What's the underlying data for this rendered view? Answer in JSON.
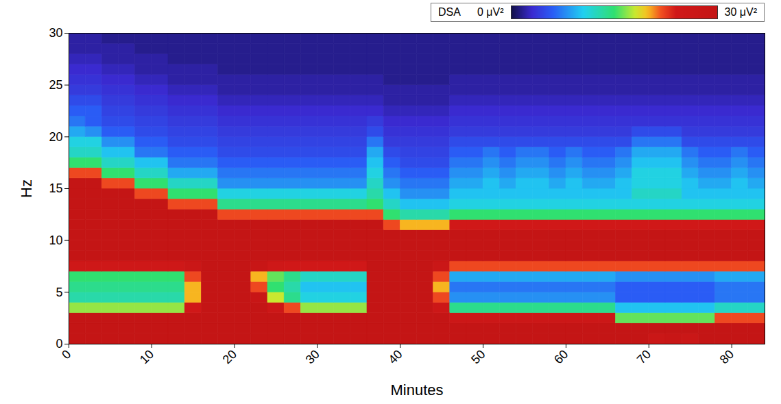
{
  "chart_data": {
    "type": "heatmap",
    "x_label": "Minutes",
    "y_label": "Hz",
    "xlim": [
      0,
      84
    ],
    "ylim": [
      0,
      30
    ],
    "xticks": [
      0,
      10,
      20,
      30,
      40,
      50,
      60,
      70,
      80
    ],
    "yticks": [
      0,
      5,
      10,
      15,
      20,
      25,
      30
    ],
    "legend": "top right",
    "colorbar": {
      "title": "DSA",
      "range": [
        0,
        30
      ],
      "ticks": [
        {
          "value": 0,
          "label": "0 μV²"
        },
        {
          "value": 30,
          "label": "30 μV²"
        }
      ]
    },
    "x_bins": [
      0,
      2,
      4,
      6,
      8,
      10,
      12,
      14,
      16,
      18,
      20,
      22,
      24,
      26,
      28,
      30,
      32,
      34,
      36,
      38,
      40,
      42,
      44,
      46,
      48,
      50,
      52,
      54,
      56,
      58,
      60,
      62,
      64,
      66,
      68,
      70,
      72,
      74,
      76,
      78,
      80,
      82,
      84
    ],
    "y_bins": [
      0,
      1,
      2,
      3,
      4,
      5,
      6,
      7,
      8,
      9,
      10,
      11,
      12,
      13,
      14,
      15,
      16,
      17,
      18,
      19,
      20,
      21,
      22,
      23,
      24,
      25,
      26,
      27,
      28,
      29,
      30
    ],
    "z": [
      [
        30,
        30,
        30,
        30,
        30,
        30,
        30,
        30,
        30,
        30,
        30,
        30,
        30,
        30,
        30,
        30,
        30,
        30,
        30,
        30,
        30,
        30,
        30,
        30,
        30,
        30,
        30,
        30,
        30,
        30,
        30,
        30,
        30,
        30,
        30,
        27,
        28,
        27,
        30,
        30,
        30,
        30
      ],
      [
        30,
        30,
        30,
        30,
        30,
        30,
        30,
        30,
        30,
        30,
        30,
        30,
        30,
        30,
        30,
        30,
        30,
        30,
        30,
        30,
        30,
        30,
        30,
        30,
        30,
        30,
        30,
        30,
        30,
        30,
        30,
        30,
        30,
        30,
        30,
        30,
        30,
        30,
        30,
        30,
        30,
        30
      ],
      [
        30,
        30,
        30,
        30,
        30,
        30,
        30,
        30,
        30,
        30,
        30,
        30,
        30,
        30,
        30,
        30,
        30,
        30,
        30,
        30,
        30,
        30,
        30,
        26,
        26,
        26,
        26,
        26,
        26,
        26,
        26,
        26,
        26,
        16,
        16,
        16,
        16,
        16,
        16,
        22,
        22,
        22
      ],
      [
        17,
        17,
        17,
        17,
        17,
        17,
        17,
        24,
        30,
        30,
        30,
        30,
        26,
        22,
        17,
        17,
        17,
        17,
        30,
        30,
        30,
        30,
        26,
        14,
        14,
        14,
        14,
        14,
        14,
        14,
        14,
        14,
        14,
        10,
        10,
        10,
        10,
        10,
        10,
        12,
        12,
        12
      ],
      [
        13,
        13,
        13,
        13,
        13,
        13,
        13,
        20,
        30,
        30,
        30,
        28,
        18,
        14,
        11,
        11,
        11,
        11,
        30,
        30,
        30,
        30,
        22,
        8,
        8,
        8,
        8,
        8,
        8,
        8,
        8,
        8,
        8,
        6,
        6,
        6,
        6,
        6,
        6,
        7,
        7,
        7
      ],
      [
        14,
        14,
        14,
        14,
        14,
        14,
        14,
        20,
        30,
        30,
        30,
        22,
        15,
        13,
        10,
        10,
        10,
        10,
        30,
        30,
        30,
        30,
        20,
        7,
        7,
        7,
        7,
        7,
        7,
        7,
        7,
        7,
        7,
        6,
        6,
        6,
        6,
        6,
        6,
        7,
        7,
        7
      ],
      [
        15,
        15,
        15,
        15,
        15,
        15,
        15,
        22,
        30,
        30,
        30,
        20,
        16,
        14,
        12,
        12,
        12,
        12,
        30,
        30,
        30,
        30,
        22,
        9,
        9,
        9,
        9,
        9,
        9,
        9,
        9,
        9,
        9,
        8,
        8,
        8,
        8,
        8,
        8,
        9,
        9,
        9
      ],
      [
        25,
        25,
        25,
        25,
        25,
        25,
        25,
        27,
        30,
        30,
        30,
        28,
        25,
        24,
        24,
        24,
        24,
        24,
        30,
        30,
        30,
        30,
        27,
        22,
        22,
        22,
        22,
        22,
        22,
        22,
        22,
        22,
        22,
        22,
        22,
        22,
        22,
        22,
        22,
        22,
        22,
        22
      ],
      [
        30,
        30,
        30,
        30,
        30,
        30,
        30,
        30,
        30,
        30,
        30,
        30,
        30,
        30,
        30,
        30,
        30,
        30,
        30,
        30,
        30,
        30,
        30,
        30,
        30,
        30,
        30,
        30,
        30,
        30,
        30,
        30,
        30,
        30,
        30,
        30,
        30,
        30,
        30,
        30,
        30,
        30
      ],
      [
        30,
        30,
        30,
        30,
        30,
        30,
        30,
        30,
        30,
        30,
        30,
        30,
        30,
        30,
        30,
        30,
        30,
        30,
        30,
        30,
        30,
        30,
        30,
        30,
        30,
        30,
        30,
        30,
        30,
        30,
        30,
        30,
        30,
        30,
        30,
        30,
        30,
        30,
        30,
        30,
        30,
        30
      ],
      [
        30,
        30,
        30,
        30,
        30,
        30,
        30,
        30,
        30,
        30,
        30,
        30,
        30,
        30,
        30,
        30,
        30,
        30,
        30,
        30,
        30,
        30,
        30,
        30,
        30,
        30,
        30,
        30,
        30,
        30,
        30,
        30,
        30,
        30,
        30,
        30,
        30,
        30,
        30,
        30,
        30,
        30
      ],
      [
        30,
        30,
        30,
        30,
        30,
        30,
        30,
        30,
        30,
        30,
        30,
        30,
        30,
        30,
        30,
        30,
        30,
        30,
        30,
        22,
        20,
        20,
        20,
        24,
        24,
        24,
        24,
        24,
        24,
        24,
        24,
        24,
        24,
        24,
        24,
        24,
        24,
        24,
        24,
        24,
        24,
        24
      ],
      [
        30,
        30,
        30,
        30,
        30,
        30,
        30,
        30,
        30,
        22,
        22,
        22,
        22,
        22,
        22,
        22,
        22,
        22,
        22,
        15,
        13,
        13,
        13,
        15,
        15,
        15,
        15,
        15,
        15,
        15,
        15,
        15,
        15,
        15,
        15,
        15,
        15,
        15,
        15,
        15,
        15,
        15
      ],
      [
        30,
        30,
        30,
        30,
        30,
        30,
        22,
        22,
        22,
        14,
        14,
        14,
        14,
        14,
        14,
        14,
        14,
        14,
        15,
        12,
        10,
        10,
        10,
        11,
        11,
        11,
        11,
        11,
        11,
        11,
        11,
        11,
        11,
        11,
        11,
        11,
        11,
        11,
        11,
        11,
        11,
        11
      ],
      [
        30,
        30,
        30,
        30,
        22,
        22,
        15,
        15,
        15,
        11,
        11,
        11,
        11,
        11,
        11,
        11,
        11,
        11,
        13,
        10,
        8,
        8,
        8,
        10,
        10,
        10,
        10,
        10,
        10,
        10,
        10,
        10,
        10,
        10,
        12,
        12,
        12,
        10,
        10,
        10,
        10,
        10
      ],
      [
        30,
        30,
        22,
        22,
        15,
        15,
        12,
        12,
        12,
        8,
        8,
        8,
        8,
        8,
        8,
        8,
        8,
        8,
        12,
        8,
        7,
        7,
        7,
        9,
        9,
        10,
        9,
        10,
        10,
        9,
        10,
        9,
        9,
        10,
        11,
        11,
        11,
        10,
        9,
        9,
        10,
        9
      ],
      [
        22,
        22,
        15,
        15,
        12,
        12,
        9,
        9,
        9,
        7,
        7,
        7,
        7,
        7,
        7,
        7,
        7,
        7,
        11,
        7,
        6,
        6,
        6,
        8,
        8,
        9,
        8,
        9,
        9,
        8,
        9,
        8,
        8,
        9,
        11,
        11,
        11,
        9,
        8,
        8,
        9,
        8
      ],
      [
        15,
        15,
        12,
        12,
        10,
        10,
        7,
        7,
        7,
        6,
        6,
        6,
        6,
        6,
        6,
        6,
        6,
        6,
        10,
        6,
        5,
        5,
        5,
        7,
        7,
        8,
        7,
        8,
        8,
        7,
        8,
        7,
        7,
        8,
        10,
        10,
        10,
        8,
        7,
        7,
        8,
        7
      ],
      [
        12,
        12,
        10,
        10,
        7,
        7,
        6,
        6,
        6,
        5,
        5,
        5,
        5,
        5,
        5,
        5,
        5,
        5,
        9,
        5,
        4.5,
        4.5,
        4.5,
        6,
        6,
        7,
        6,
        7,
        7,
        6,
        7,
        6,
        6,
        7,
        9,
        9,
        9,
        7,
        6,
        6,
        7,
        6
      ],
      [
        11,
        11,
        8,
        8,
        6,
        6,
        5,
        5,
        5,
        4.5,
        4.5,
        4.5,
        4.5,
        4.5,
        4.5,
        4.5,
        4.5,
        4.5,
        7,
        4,
        4,
        4,
        4,
        5,
        5,
        5,
        5,
        5,
        5,
        5,
        5,
        5,
        5,
        5,
        7,
        7,
        7,
        5,
        5,
        5,
        5,
        5
      ],
      [
        9,
        8,
        6,
        6,
        5,
        5,
        4.5,
        4.5,
        4.5,
        4,
        4,
        4,
        4,
        4,
        4,
        4,
        4,
        4,
        5,
        3.5,
        3.5,
        3.5,
        3.5,
        4,
        4,
        4,
        4,
        4,
        4,
        4,
        4,
        4,
        4,
        4,
        5,
        5,
        5,
        4,
        4,
        4,
        4,
        4
      ],
      [
        7,
        6,
        5,
        5,
        4.5,
        4.5,
        4,
        4,
        4,
        3.5,
        3.5,
        3.5,
        3.5,
        3.5,
        3.5,
        3.5,
        3.5,
        3.5,
        4,
        3,
        3,
        3,
        3,
        3.5,
        3.5,
        3.5,
        3.5,
        3.5,
        3.5,
        3.5,
        3.5,
        3.5,
        3.5,
        3.5,
        3.5,
        3.5,
        3.5,
        3.5,
        3.5,
        3.5,
        3.5,
        3.5
      ],
      [
        6,
        6,
        4.5,
        4.5,
        4,
        4,
        3.5,
        3.5,
        3.5,
        3,
        3,
        3,
        3,
        3,
        3,
        3,
        3,
        3,
        3,
        2.5,
        2.5,
        2.5,
        2.5,
        3,
        3,
        3,
        3,
        3,
        3,
        3,
        3,
        3,
        3,
        3,
        3,
        3,
        3,
        3,
        3,
        3,
        3,
        3
      ],
      [
        5,
        5,
        4,
        4,
        3.5,
        3.5,
        3,
        3,
        3,
        2.5,
        2.5,
        2.5,
        2.5,
        2.5,
        2.5,
        2.5,
        2.5,
        2.5,
        2.5,
        2,
        2,
        2,
        2,
        2.5,
        2.5,
        2.5,
        2.5,
        2.5,
        2.5,
        2.5,
        2.5,
        2.5,
        2.5,
        2.5,
        2.5,
        2.5,
        2.5,
        2.5,
        2.5,
        2.5,
        2.5,
        2.5
      ],
      [
        4,
        4,
        3.5,
        3.5,
        3,
        3,
        2.5,
        2.5,
        2.5,
        2,
        2,
        2,
        2,
        2,
        2,
        2,
        2,
        2,
        2,
        2,
        2,
        2,
        2,
        2,
        2,
        2,
        2,
        2,
        2,
        2,
        2,
        2,
        2,
        2,
        2,
        2,
        2,
        2,
        2,
        2,
        2,
        2
      ],
      [
        3.5,
        3.5,
        3,
        3,
        2.5,
        2.5,
        2,
        2,
        2,
        2,
        2,
        2,
        2,
        2,
        2,
        2,
        2,
        2,
        2,
        1.5,
        1.5,
        1.5,
        1.5,
        2,
        2,
        2,
        2,
        2,
        2,
        2,
        2,
        2,
        2,
        2,
        2,
        2,
        2,
        2,
        2,
        2,
        2,
        2
      ],
      [
        3,
        3,
        2.5,
        2.5,
        2,
        2,
        2,
        2,
        2,
        1.5,
        1.5,
        1.5,
        1.5,
        1.5,
        1.5,
        1.5,
        1.5,
        1.5,
        1.5,
        1.5,
        1.5,
        1.5,
        1.5,
        1.5,
        1.5,
        1.5,
        1.5,
        1.5,
        1.5,
        1.5,
        1.5,
        1.5,
        1.5,
        1.5,
        1.5,
        1.5,
        1.5,
        1.5,
        1.5,
        1.5,
        1.5,
        1.5
      ],
      [
        2.5,
        2.5,
        2,
        2,
        2,
        2,
        1.5,
        1.5,
        1.5,
        1.5,
        1.5,
        1.5,
        1.5,
        1.5,
        1.5,
        1.5,
        1.5,
        1.5,
        1.5,
        1.5,
        1.5,
        1.5,
        1.5,
        1.5,
        1.5,
        1.5,
        1.5,
        1.5,
        1.5,
        1.5,
        1.5,
        1.5,
        1.5,
        1.5,
        1.5,
        1.5,
        1.5,
        1.5,
        1.5,
        1.5,
        1.5,
        1.5
      ],
      [
        2,
        2,
        2,
        2,
        1.5,
        1.5,
        1.5,
        1.5,
        1.5,
        1.5,
        1.5,
        1.5,
        1.5,
        1.5,
        1.5,
        1.5,
        1.5,
        1.5,
        1.5,
        1.5,
        1.5,
        1.5,
        1.5,
        1.5,
        1.5,
        1.5,
        1.5,
        1.5,
        1.5,
        1.5,
        1.5,
        1.5,
        1.5,
        1.5,
        1.5,
        1.5,
        1.5,
        1.5,
        1.5,
        1.5,
        1.5,
        1.5
      ],
      [
        2,
        2,
        1.5,
        1.5,
        1.5,
        1.5,
        1.5,
        1.5,
        1.5,
        1.5,
        1.5,
        1.5,
        1.5,
        1.5,
        1.5,
        1.5,
        1.5,
        1.5,
        1.5,
        1.5,
        1.5,
        1.5,
        1.5,
        1.5,
        1.5,
        1.5,
        1.5,
        1.5,
        1.5,
        1.5,
        1.5,
        1.5,
        1.5,
        1.5,
        1.5,
        1.5,
        1.5,
        1.5,
        1.5,
        1.5,
        1.5,
        1.5
      ]
    ]
  }
}
